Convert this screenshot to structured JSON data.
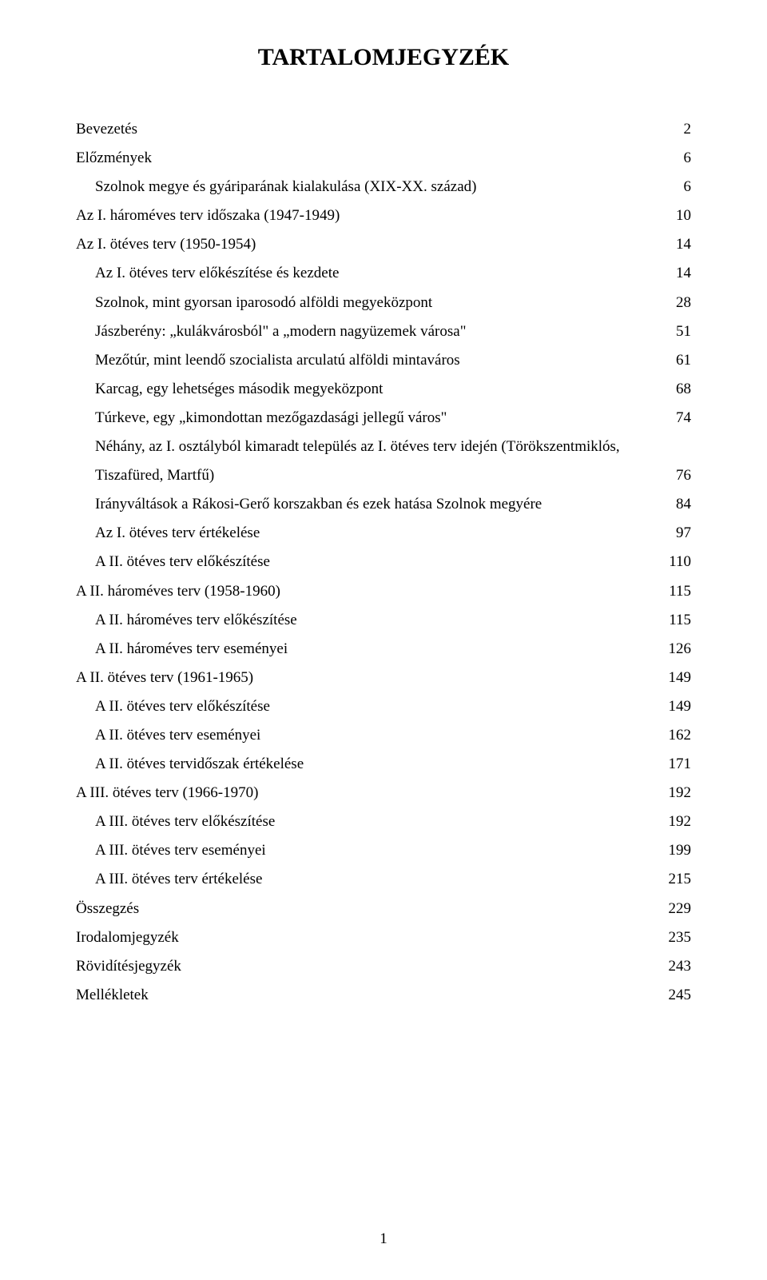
{
  "title": "TARTALOMJEGYZÉK",
  "page_number": "1",
  "font": {
    "family": "Times New Roman",
    "title_size_pt": 22,
    "body_size_pt": 14,
    "title_weight": "bold",
    "body_weight": "normal"
  },
  "colors": {
    "text": "#000000",
    "background": "#ffffff"
  },
  "entries": [
    {
      "indent": 0,
      "label": "Bevezetés",
      "page": "2"
    },
    {
      "indent": 0,
      "label": "Előzmények",
      "page": "6"
    },
    {
      "indent": 1,
      "label": "Szolnok megye és gyáriparának kialakulása (XIX-XX. század)",
      "page": "6"
    },
    {
      "indent": 0,
      "label": "Az I. hároméves terv időszaka (1947-1949)",
      "page": "10"
    },
    {
      "indent": 0,
      "label": "Az I. ötéves terv (1950-1954)",
      "page": "14"
    },
    {
      "indent": 1,
      "label": "Az I. ötéves terv előkészítése és kezdete",
      "page": "14"
    },
    {
      "indent": 1,
      "label": "Szolnok, mint gyorsan iparosodó alföldi megyeközpont",
      "page": "28"
    },
    {
      "indent": 1,
      "label": "Jászberény: „kulákvárosból\" a „modern nagyüzemek városa\"",
      "page": "51"
    },
    {
      "indent": 1,
      "label": "Mezőtúr, mint leendő szocialista arculatú alföldi mintaváros",
      "page": "61"
    },
    {
      "indent": 1,
      "label": "Karcag, egy lehetséges második megyeközpont",
      "page": "68"
    },
    {
      "indent": 1,
      "label": "Túrkeve, egy „kimondottan mezőgazdasági jellegű város\"",
      "page": "74"
    },
    {
      "indent": 1,
      "label_line1": "Néhány, az I. osztályból kimaradt település az I. ötéves terv idején (Törökszentmiklós,",
      "label_line2": "Tiszafüred, Martfű)",
      "page": "76",
      "multiline": true
    },
    {
      "indent": 1,
      "label": "Irányváltások a Rákosi-Gerő korszakban és ezek hatása Szolnok megyére",
      "page": "84"
    },
    {
      "indent": 1,
      "label": "Az I. ötéves terv értékelése",
      "page": "97"
    },
    {
      "indent": 1,
      "label": "A II. ötéves terv előkészítése",
      "page": "110"
    },
    {
      "indent": 0,
      "label": "A II. hároméves terv (1958-1960)",
      "page": "115"
    },
    {
      "indent": 1,
      "label": "A II. hároméves terv előkészítése",
      "page": "115"
    },
    {
      "indent": 1,
      "label": "A II. hároméves terv eseményei",
      "page": "126"
    },
    {
      "indent": 0,
      "label": "A II. ötéves terv (1961-1965)",
      "page": "149"
    },
    {
      "indent": 1,
      "label": "A II. ötéves terv előkészítése",
      "page": "149"
    },
    {
      "indent": 1,
      "label": "A II. ötéves terv eseményei",
      "page": "162"
    },
    {
      "indent": 1,
      "label": "A II. ötéves tervidőszak értékelése",
      "page": "171"
    },
    {
      "indent": 0,
      "label": "A III. ötéves terv (1966-1970)",
      "page": "192"
    },
    {
      "indent": 1,
      "label": "A III. ötéves terv előkészítése",
      "page": "192"
    },
    {
      "indent": 1,
      "label": "A III. ötéves terv eseményei",
      "page": "199"
    },
    {
      "indent": 1,
      "label": "A III. ötéves terv értékelése",
      "page": "215"
    },
    {
      "indent": 0,
      "label": "Összegzés",
      "page": "229"
    },
    {
      "indent": 0,
      "label": "Irodalomjegyzék",
      "page": "235"
    },
    {
      "indent": 0,
      "label": "Rövidítésjegyzék",
      "page": "243"
    },
    {
      "indent": 0,
      "label": "Mellékletek",
      "page": "245"
    }
  ]
}
